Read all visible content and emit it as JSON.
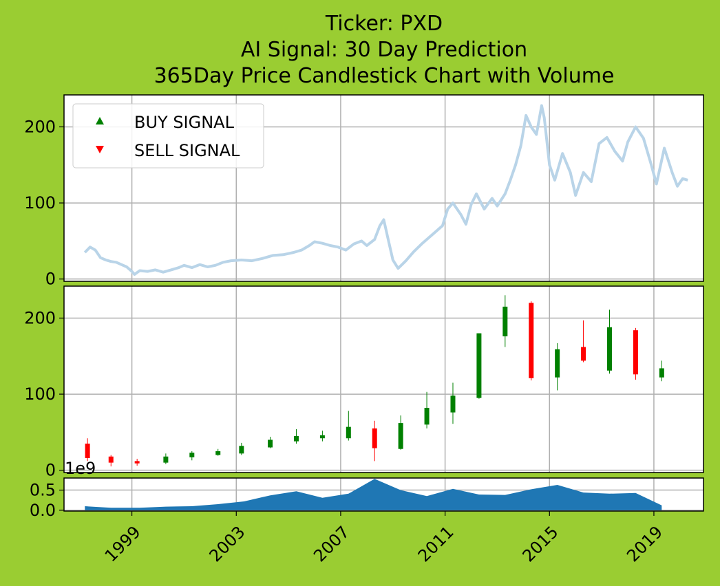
{
  "title_lines": [
    "Ticker: PXD",
    "AI Signal: 30 Day Prediction",
    "365Day Price Candlestick Chart with Volume"
  ],
  "legend": {
    "items": [
      {
        "label": "BUY SIGNAL",
        "color": "#008000",
        "marker": "triangle-up"
      },
      {
        "label": "SELL SIGNAL",
        "color": "#ff0000",
        "marker": "triangle-down"
      }
    ],
    "placement": "upper-left"
  },
  "colors": {
    "background": "#9acd32",
    "price_line": "#b9d4e8",
    "up": "#008000",
    "down": "#ff0000",
    "volume": "#1f77b4",
    "grid": "#b0b0b0"
  },
  "chart_data": [
    {
      "type": "line",
      "name": "price",
      "x_unit": "year",
      "y_ticks": [
        0,
        100,
        200
      ],
      "ylim": [
        -3,
        242
      ],
      "xlim": [
        1996.4,
        2020.9
      ],
      "grid": true,
      "points": [
        [
          1997.2,
          35
        ],
        [
          1997.4,
          42
        ],
        [
          1997.6,
          38
        ],
        [
          1997.8,
          28
        ],
        [
          1998.0,
          25
        ],
        [
          1998.2,
          23
        ],
        [
          1998.4,
          22
        ],
        [
          1998.6,
          19
        ],
        [
          1998.8,
          16
        ],
        [
          1999.0,
          10
        ],
        [
          1999.1,
          6
        ],
        [
          1999.3,
          11
        ],
        [
          1999.6,
          10
        ],
        [
          1999.9,
          12
        ],
        [
          2000.2,
          9
        ],
        [
          2000.5,
          12
        ],
        [
          2000.8,
          15
        ],
        [
          2001.0,
          18
        ],
        [
          2001.3,
          15
        ],
        [
          2001.6,
          19
        ],
        [
          2001.9,
          16
        ],
        [
          2002.2,
          18
        ],
        [
          2002.5,
          22
        ],
        [
          2002.8,
          24
        ],
        [
          2003.2,
          25
        ],
        [
          2003.6,
          24
        ],
        [
          2004.0,
          27
        ],
        [
          2004.4,
          31
        ],
        [
          2004.8,
          32
        ],
        [
          2005.2,
          35
        ],
        [
          2005.5,
          38
        ],
        [
          2005.8,
          44
        ],
        [
          2006.0,
          49
        ],
        [
          2006.3,
          47
        ],
        [
          2006.6,
          44
        ],
        [
          2006.9,
          42
        ],
        [
          2007.2,
          38
        ],
        [
          2007.5,
          46
        ],
        [
          2007.8,
          50
        ],
        [
          2008.0,
          44
        ],
        [
          2008.3,
          52
        ],
        [
          2008.5,
          70
        ],
        [
          2008.65,
          78
        ],
        [
          2008.8,
          55
        ],
        [
          2009.0,
          25
        ],
        [
          2009.2,
          14
        ],
        [
          2009.5,
          24
        ],
        [
          2009.8,
          36
        ],
        [
          2010.1,
          46
        ],
        [
          2010.4,
          55
        ],
        [
          2010.7,
          64
        ],
        [
          2010.9,
          70
        ],
        [
          2011.1,
          92
        ],
        [
          2011.3,
          100
        ],
        [
          2011.6,
          85
        ],
        [
          2011.8,
          72
        ],
        [
          2012.0,
          98
        ],
        [
          2012.2,
          112
        ],
        [
          2012.5,
          92
        ],
        [
          2012.8,
          106
        ],
        [
          2013.0,
          96
        ],
        [
          2013.3,
          112
        ],
        [
          2013.5,
          130
        ],
        [
          2013.7,
          150
        ],
        [
          2013.9,
          175
        ],
        [
          2014.1,
          215
        ],
        [
          2014.3,
          200
        ],
        [
          2014.5,
          190
        ],
        [
          2014.7,
          228
        ],
        [
          2014.8,
          212
        ],
        [
          2015.0,
          150
        ],
        [
          2015.2,
          130
        ],
        [
          2015.5,
          165
        ],
        [
          2015.8,
          140
        ],
        [
          2016.0,
          110
        ],
        [
          2016.3,
          140
        ],
        [
          2016.6,
          128
        ],
        [
          2016.9,
          178
        ],
        [
          2017.2,
          186
        ],
        [
          2017.5,
          168
        ],
        [
          2017.8,
          155
        ],
        [
          2018.0,
          180
        ],
        [
          2018.3,
          200
        ],
        [
          2018.6,
          185
        ],
        [
          2018.9,
          150
        ],
        [
          2019.1,
          125
        ],
        [
          2019.4,
          172
        ],
        [
          2019.7,
          140
        ],
        [
          2019.9,
          122
        ],
        [
          2020.1,
          132
        ],
        [
          2020.3,
          130
        ]
      ]
    },
    {
      "type": "candlestick",
      "name": "candles",
      "x_unit": "year",
      "y_ticks": [
        0,
        100,
        200
      ],
      "ylim": [
        -3,
        242
      ],
      "grid": true,
      "candles": [
        {
          "x": 1997.3,
          "open": 35,
          "high": 42,
          "low": 12,
          "close": 16
        },
        {
          "x": 1998.2,
          "open": 18,
          "high": 20,
          "low": 5,
          "close": 10
        },
        {
          "x": 1999.2,
          "open": 12,
          "high": 15,
          "low": 6,
          "close": 9
        },
        {
          "x": 2000.3,
          "open": 10,
          "high": 22,
          "low": 8,
          "close": 18
        },
        {
          "x": 2001.3,
          "open": 17,
          "high": 25,
          "low": 13,
          "close": 23
        },
        {
          "x": 2002.3,
          "open": 20,
          "high": 28,
          "low": 19,
          "close": 25
        },
        {
          "x": 2003.2,
          "open": 22,
          "high": 36,
          "low": 20,
          "close": 32
        },
        {
          "x": 2004.3,
          "open": 30,
          "high": 44,
          "low": 29,
          "close": 40
        },
        {
          "x": 2005.3,
          "open": 38,
          "high": 54,
          "low": 35,
          "close": 45
        },
        {
          "x": 2006.3,
          "open": 42,
          "high": 52,
          "low": 38,
          "close": 46
        },
        {
          "x": 2007.3,
          "open": 42,
          "high": 78,
          "low": 39,
          "close": 57
        },
        {
          "x": 2008.3,
          "open": 55,
          "high": 65,
          "low": 12,
          "close": 29
        },
        {
          "x": 2009.3,
          "open": 28,
          "high": 72,
          "low": 27,
          "close": 62
        },
        {
          "x": 2010.3,
          "open": 60,
          "high": 103,
          "low": 55,
          "close": 82
        },
        {
          "x": 2011.3,
          "open": 76,
          "high": 115,
          "low": 61,
          "close": 98
        },
        {
          "x": 2012.3,
          "open": 95,
          "high": 180,
          "low": 94,
          "close": 180
        },
        {
          "x": 2013.3,
          "open": 176,
          "high": 230,
          "low": 162,
          "close": 215
        },
        {
          "x": 2014.3,
          "open": 220,
          "high": 222,
          "low": 118,
          "close": 121
        },
        {
          "x": 2015.3,
          "open": 122,
          "high": 167,
          "low": 105,
          "close": 159
        },
        {
          "x": 2016.3,
          "open": 162,
          "high": 197,
          "low": 142,
          "close": 144
        },
        {
          "x": 2017.3,
          "open": 131,
          "high": 211,
          "low": 127,
          "close": 188
        },
        {
          "x": 2018.3,
          "open": 184,
          "high": 187,
          "low": 119,
          "close": 126
        },
        {
          "x": 2019.3,
          "open": 122,
          "high": 144,
          "low": 117,
          "close": 134
        }
      ]
    },
    {
      "type": "area",
      "name": "volume",
      "x_unit": "year",
      "scale_label": "1e9",
      "y_ticks": [
        0.0,
        0.5
      ],
      "y_tick_labels": [
        "0.0",
        "0.5"
      ],
      "ylim": [
        -0.02,
        0.8
      ],
      "x_ticks": [
        1999,
        2003,
        2007,
        2011,
        2015,
        2019
      ],
      "grid": true,
      "points": [
        [
          1997.2,
          0.1
        ],
        [
          1998.2,
          0.06
        ],
        [
          1999.3,
          0.06
        ],
        [
          2000.3,
          0.09
        ],
        [
          2001.3,
          0.1
        ],
        [
          2002.3,
          0.15
        ],
        [
          2003.3,
          0.22
        ],
        [
          2004.3,
          0.37
        ],
        [
          2005.3,
          0.47
        ],
        [
          2006.3,
          0.31
        ],
        [
          2007.3,
          0.41
        ],
        [
          2008.3,
          0.78
        ],
        [
          2009.3,
          0.5
        ],
        [
          2010.3,
          0.35
        ],
        [
          2011.3,
          0.53
        ],
        [
          2012.3,
          0.39
        ],
        [
          2013.3,
          0.38
        ],
        [
          2014.3,
          0.52
        ],
        [
          2015.3,
          0.63
        ],
        [
          2016.3,
          0.44
        ],
        [
          2017.3,
          0.41
        ],
        [
          2018.3,
          0.43
        ],
        [
          2019.3,
          0.12
        ]
      ]
    }
  ]
}
